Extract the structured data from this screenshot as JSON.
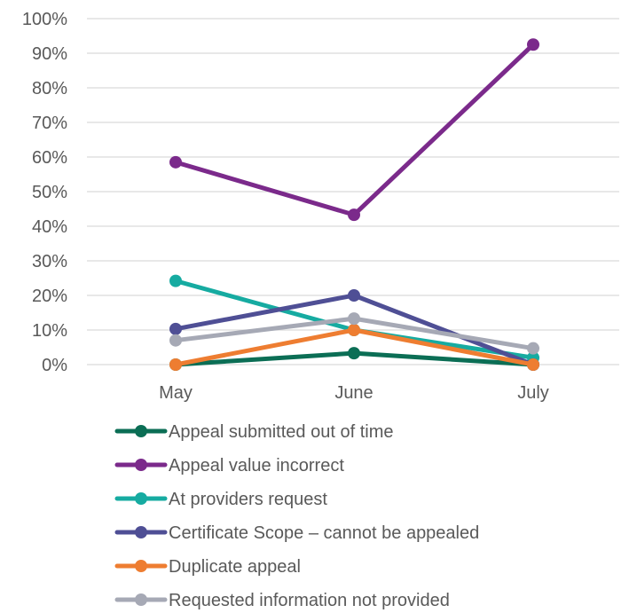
{
  "chart_data": {
    "type": "line",
    "categories": [
      "May",
      "June",
      "July"
    ],
    "y_tick_labels": [
      "0%",
      "10%",
      "20%",
      "30%",
      "40%",
      "50%",
      "60%",
      "70%",
      "80%",
      "90%",
      "100%"
    ],
    "ylim": [
      0,
      100
    ],
    "grid": true,
    "legend_position": "bottom",
    "series": [
      {
        "name": "Appeal submitted out of time",
        "color": "#0b6e55",
        "values": [
          0,
          3.3,
          0
        ]
      },
      {
        "name": "Appeal value incorrect",
        "color": "#7b2a8b",
        "values": [
          58.5,
          43.3,
          92.5
        ]
      },
      {
        "name": "At providers request",
        "color": "#16aba1",
        "values": [
          24.2,
          10.0,
          2.0
        ]
      },
      {
        "name": "Certificate Scope – cannot be appealed",
        "color": "#4f4f95",
        "values": [
          10.3,
          20.0,
          0
        ]
      },
      {
        "name": "Duplicate appeal",
        "color": "#ee7d31",
        "values": [
          0,
          10.0,
          0
        ]
      },
      {
        "name": "Requested information not provided",
        "color": "#a6a9b5",
        "values": [
          7.0,
          13.3,
          4.7
        ]
      }
    ]
  }
}
